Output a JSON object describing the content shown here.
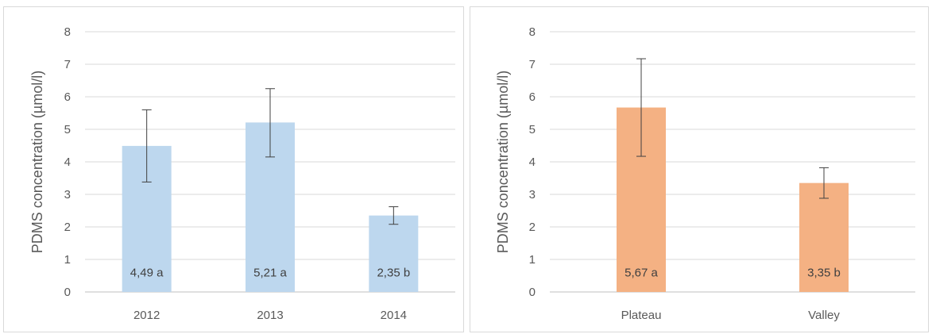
{
  "chart_data": [
    {
      "type": "bar",
      "ylabel": "PDMS concentration (µmol/l)",
      "xlabel": "",
      "ylim": [
        0,
        8
      ],
      "yticks": [
        0,
        1,
        2,
        3,
        4,
        5,
        6,
        7,
        8
      ],
      "grid": true,
      "categories": [
        "2012",
        "2013",
        "2014"
      ],
      "values": [
        4.49,
        5.21,
        2.35
      ],
      "error_low": [
        3.38,
        4.15,
        2.08
      ],
      "error_high": [
        5.6,
        6.25,
        2.62
      ],
      "data_labels": [
        "4,49 a",
        "5,21 a",
        "2,35 b"
      ],
      "color": "#bdd7ee"
    },
    {
      "type": "bar",
      "ylabel": "PDMS concentration (µmol/l)",
      "xlabel": "",
      "ylim": [
        0,
        8
      ],
      "yticks": [
        0,
        1,
        2,
        3,
        4,
        5,
        6,
        7,
        8
      ],
      "grid": true,
      "categories": [
        "Plateau",
        "Valley"
      ],
      "values": [
        5.67,
        3.35
      ],
      "error_low": [
        4.17,
        2.88
      ],
      "error_high": [
        7.17,
        3.82
      ],
      "data_labels": [
        "5,67 a",
        "3,35 b"
      ],
      "color": "#f4b183"
    }
  ]
}
